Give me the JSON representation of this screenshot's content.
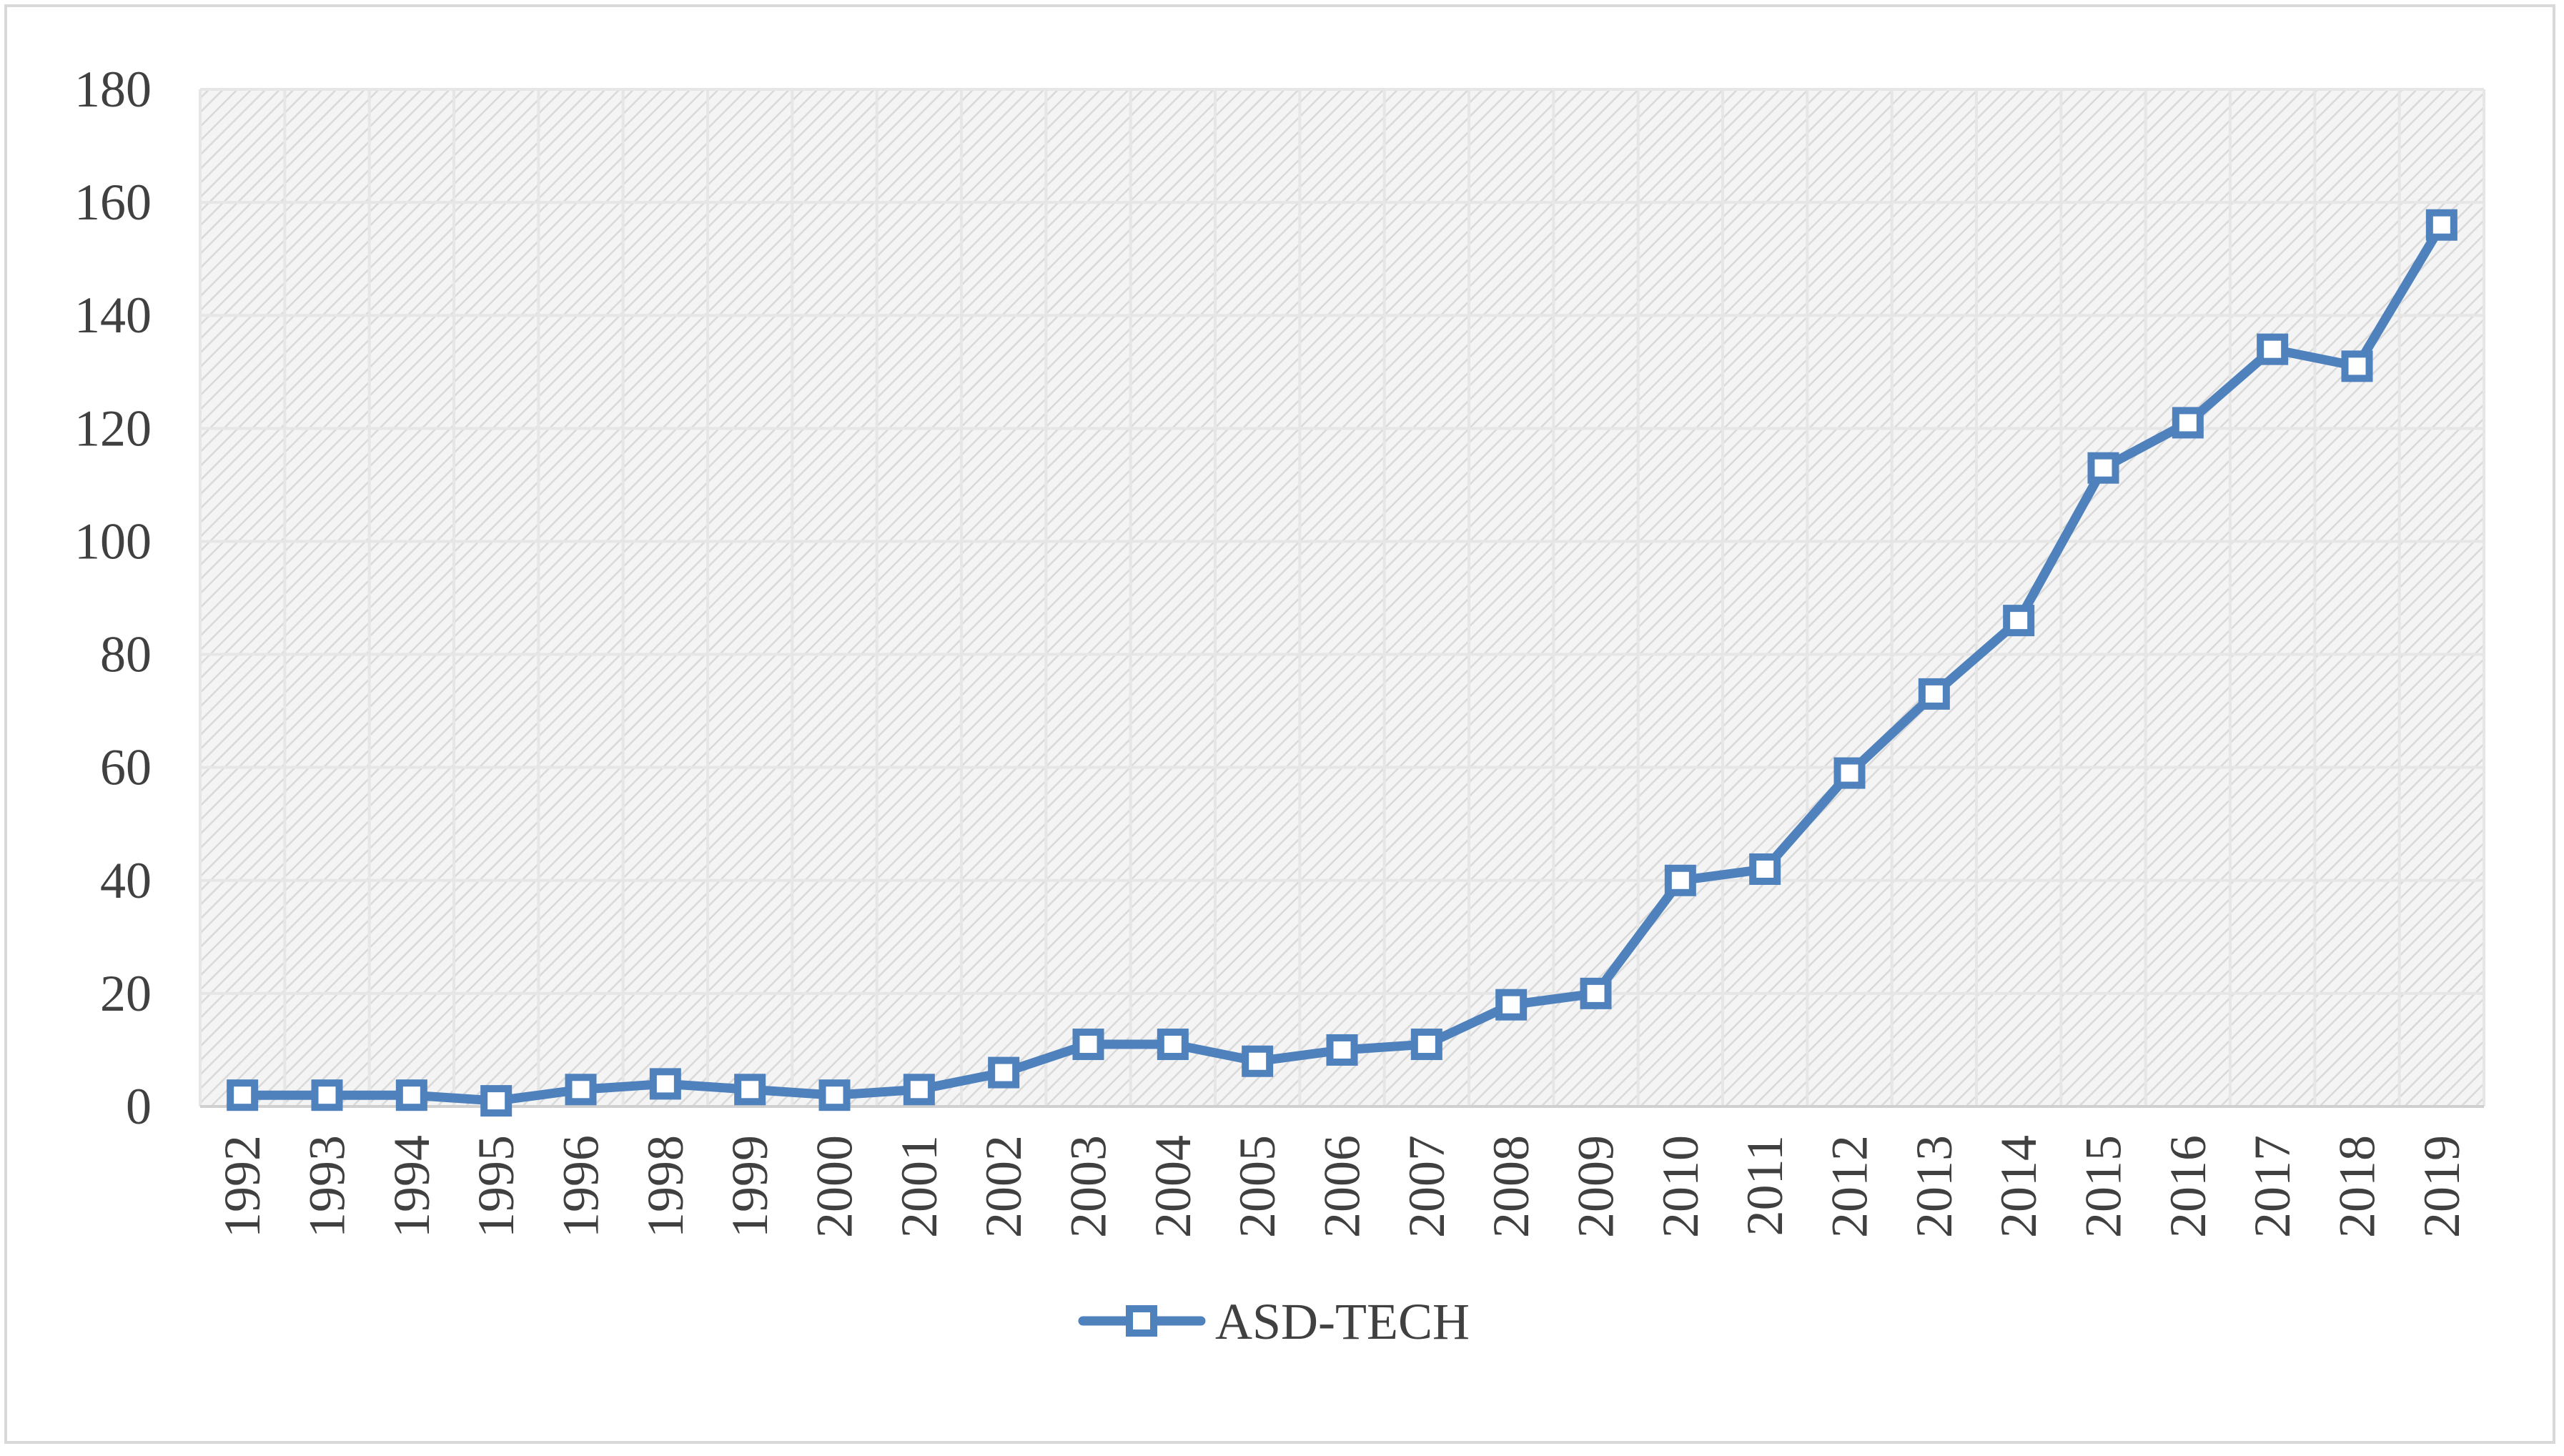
{
  "chart_data": {
    "type": "line",
    "title": "",
    "xlabel": "",
    "ylabel": "",
    "categories": [
      "1992",
      "1993",
      "1994",
      "1995",
      "1996",
      "1998",
      "1999",
      "2000",
      "2001",
      "2002",
      "2003",
      "2004",
      "2005",
      "2006",
      "2007",
      "2008",
      "2009",
      "2010",
      "2011",
      "2012",
      "2013",
      "2014",
      "2015",
      "2016",
      "2017",
      "2018",
      "2019"
    ],
    "series": [
      {
        "name": "ASD-TECH",
        "values": [
          2,
          2,
          2,
          1,
          3,
          4,
          3,
          2,
          3,
          6,
          11,
          11,
          8,
          10,
          11,
          18,
          20,
          40,
          42,
          59,
          73,
          86,
          113,
          121,
          134,
          131,
          156
        ],
        "color": "#4f81bd",
        "marker": "square-hollow"
      }
    ],
    "ylim": [
      0,
      180
    ],
    "yticks": [
      0,
      20,
      40,
      60,
      80,
      100,
      120,
      140,
      160,
      180
    ],
    "grid": true,
    "legend_position": "bottom"
  }
}
